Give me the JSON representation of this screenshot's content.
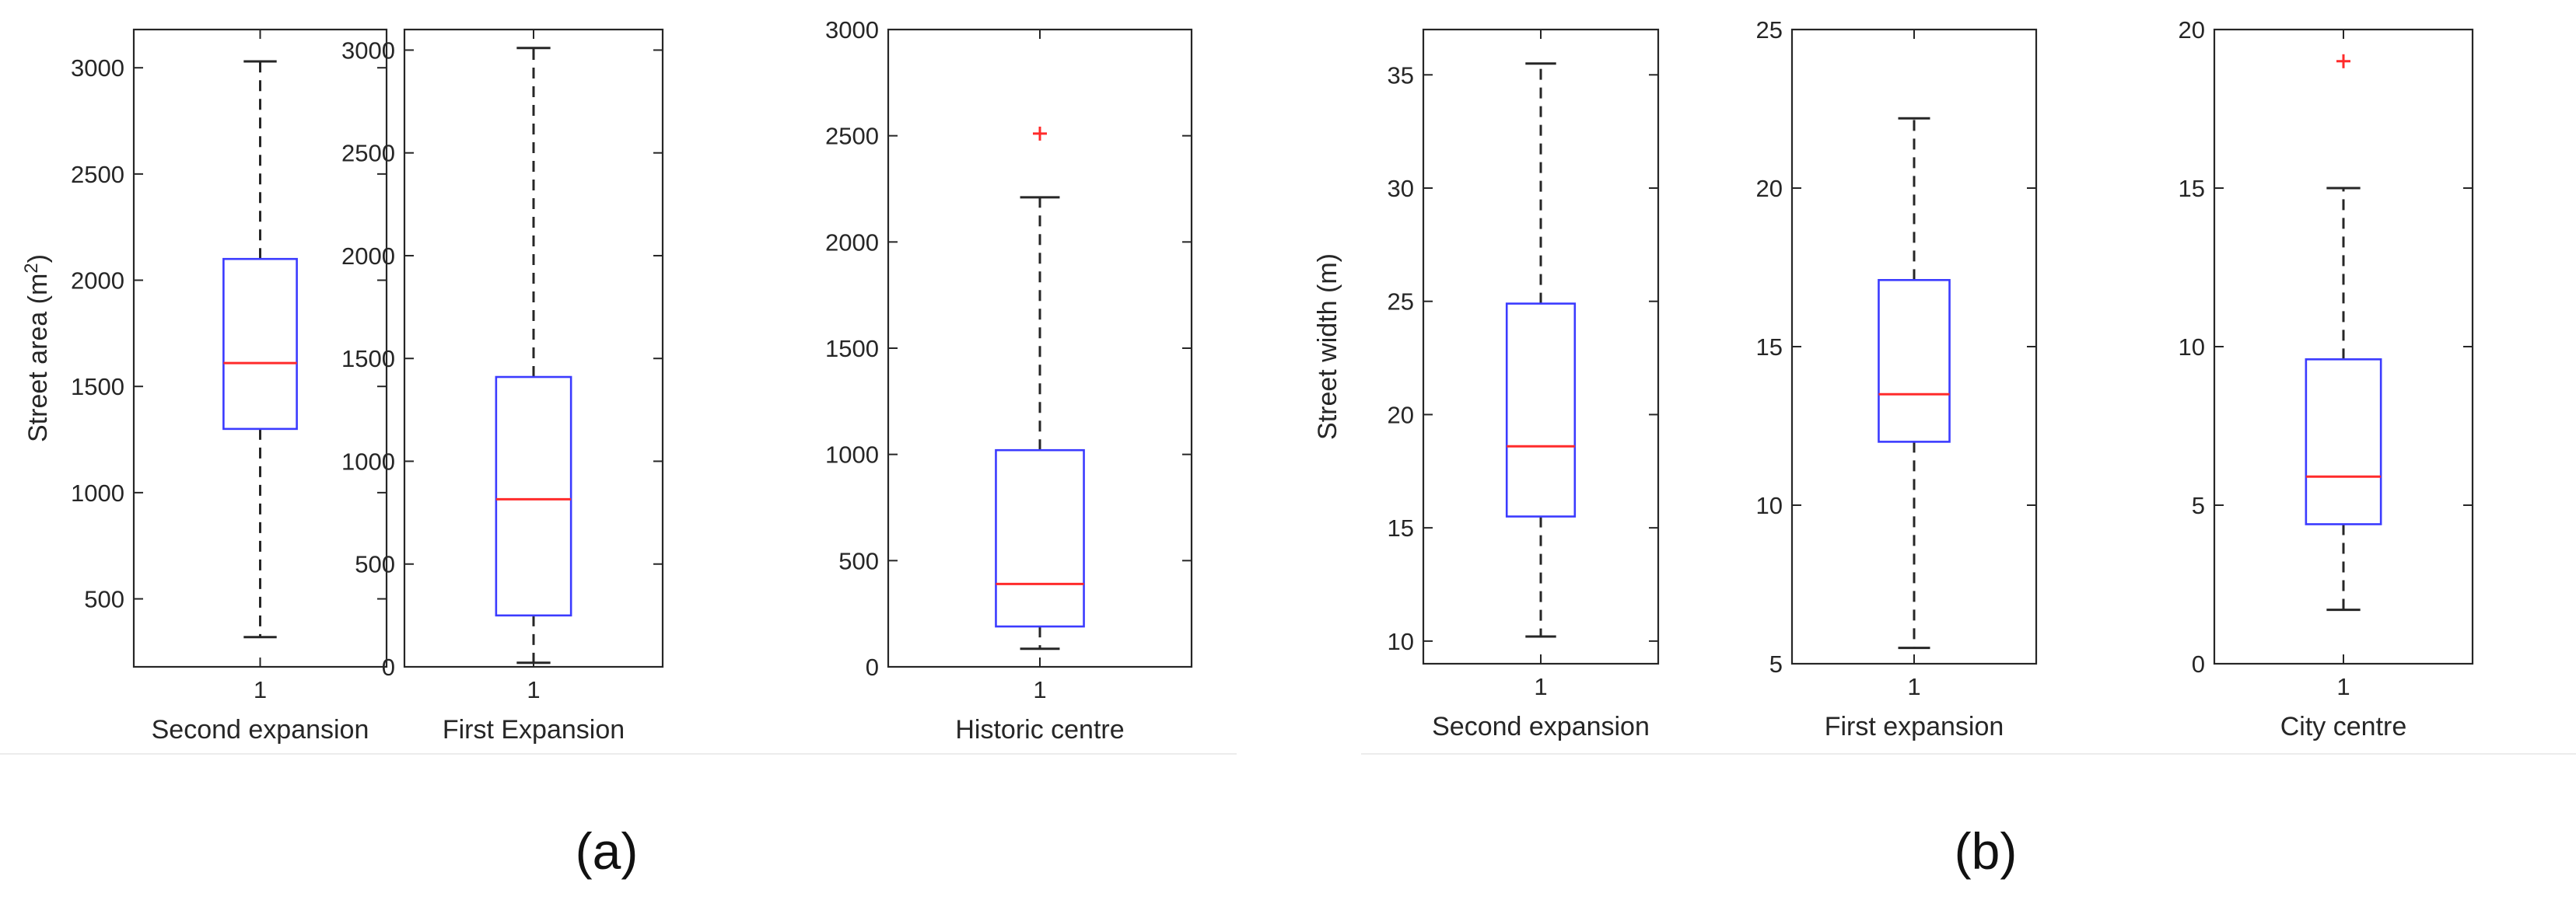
{
  "panel_labels": {
    "a": "(a)",
    "b": "(b)"
  },
  "chart_data": [
    {
      "type": "box",
      "group": "(a)",
      "xlabel": "Second expansion",
      "ylabel": "Street area (m",
      "ylabel_sup": "2",
      "ylabel_close": ")",
      "category": "1",
      "ylim": [
        180,
        3180
      ],
      "yticks": [
        500,
        1000,
        1500,
        2000,
        2500,
        3000
      ],
      "stats": {
        "min": 320,
        "q1": 1300,
        "median": 1610,
        "q3": 2100,
        "max": 3030
      },
      "outliers": []
    },
    {
      "type": "box",
      "group": "(a)",
      "xlabel": "First Expansion",
      "category": "1",
      "ylim": [
        0,
        3100
      ],
      "yticks": [
        0,
        500,
        1000,
        1500,
        2000,
        2500,
        3000
      ],
      "stats": {
        "min": 20,
        "q1": 250,
        "median": 815,
        "q3": 1410,
        "max": 3010
      },
      "outliers": []
    },
    {
      "type": "box",
      "group": "(a)",
      "xlabel": "Historic centre",
      "category": "1",
      "ylim": [
        0,
        3000
      ],
      "yticks": [
        0,
        500,
        1000,
        1500,
        2000,
        2500,
        3000
      ],
      "stats": {
        "min": 85,
        "q1": 190,
        "median": 390,
        "q3": 1020,
        "max": 2210
      },
      "outliers": [
        2510
      ]
    },
    {
      "type": "box",
      "group": "(b)",
      "xlabel": "Second expansion",
      "ylabel": "Street width (m)",
      "category": "1",
      "ylim": [
        9,
        37
      ],
      "yticks": [
        10,
        15,
        20,
        25,
        30,
        35
      ],
      "stats": {
        "min": 10.2,
        "q1": 15.5,
        "median": 18.6,
        "q3": 24.9,
        "max": 35.5
      },
      "outliers": []
    },
    {
      "type": "box",
      "group": "(b)",
      "xlabel": "First expansion",
      "category": "1",
      "ylim": [
        5,
        25
      ],
      "yticks": [
        5,
        10,
        15,
        20,
        25
      ],
      "stats": {
        "min": 5.5,
        "q1": 12.0,
        "median": 13.5,
        "q3": 17.1,
        "max": 22.2
      },
      "outliers": []
    },
    {
      "type": "box",
      "group": "(b)",
      "xlabel": "City centre",
      "category": "1",
      "ylim": [
        0,
        20
      ],
      "yticks": [
        0,
        5,
        10,
        15,
        20
      ],
      "stats": {
        "min": 1.7,
        "q1": 4.4,
        "median": 5.9,
        "q3": 9.6,
        "max": 15.0
      },
      "outliers": [
        19.0
      ]
    }
  ]
}
